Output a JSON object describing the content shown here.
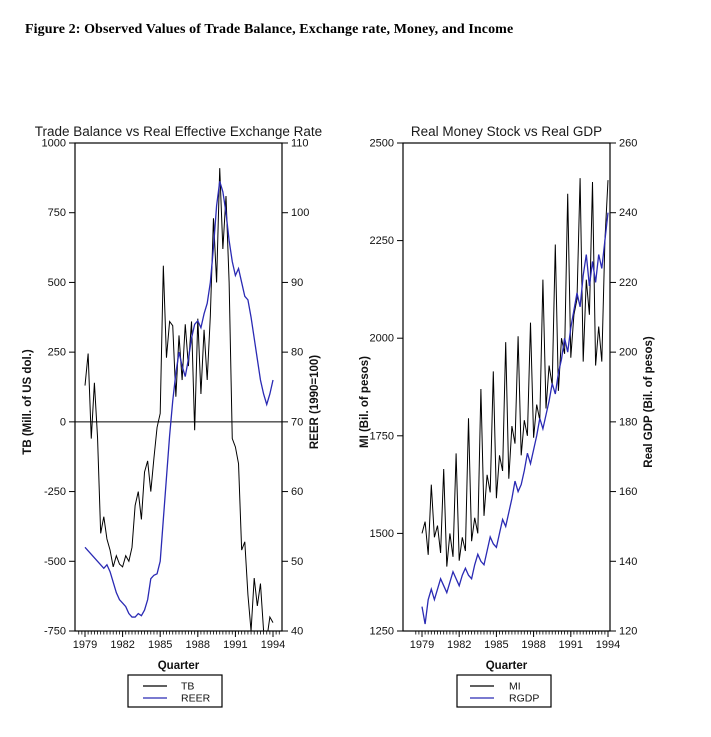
{
  "page": {
    "caption": "Figure 2: Observed Values of Trade Balance, Exchange rate, Money, and Income"
  },
  "chart_data": [
    {
      "type": "line",
      "title": "Trade Balance vs Real Effective Exchange Rate",
      "xlabel": "Quarter",
      "x_start": 1979.0,
      "x_step_years": 0.25,
      "x_tick_years": [
        1979,
        1982,
        1985,
        1988,
        1991,
        1994
      ],
      "y_left": {
        "label": "TB (Mill. of US dol.)",
        "min": -750,
        "max": 1000,
        "ticks": [
          -750,
          -500,
          -250,
          0,
          250,
          500,
          750,
          1000
        ]
      },
      "y_right": {
        "label": "REER (1990=100)",
        "min": 40,
        "max": 110,
        "ticks": [
          40,
          50,
          60,
          70,
          80,
          90,
          100,
          110
        ]
      },
      "hline_left_axis": 0,
      "grid": false,
      "legend_position": "bottom",
      "series": [
        {
          "name": "TB",
          "axis": "left",
          "color": "#000000",
          "values": [
            130,
            245,
            -60,
            140,
            -55,
            -400,
            -340,
            -420,
            -460,
            -520,
            -480,
            -510,
            -520,
            -480,
            -500,
            -450,
            -300,
            -250,
            -350,
            -180,
            -140,
            -250,
            -130,
            -20,
            30,
            560,
            230,
            360,
            345,
            90,
            310,
            150,
            350,
            200,
            360,
            -30,
            370,
            100,
            330,
            150,
            380,
            730,
            500,
            910,
            620,
            810,
            500,
            -60,
            -90,
            -150,
            -460,
            -430,
            -620,
            -750,
            -560,
            -660,
            -580,
            -750,
            -780,
            -700,
            -720
          ]
        },
        {
          "name": "REER",
          "axis": "right",
          "color": "#2a2ab4",
          "values": [
            52,
            51.5,
            51,
            50.5,
            50,
            49.5,
            49,
            49.5,
            48.5,
            47,
            45.5,
            44.5,
            44,
            43.5,
            42.5,
            42,
            42,
            42.5,
            42.2,
            43,
            44.5,
            47.5,
            48,
            48.2,
            50,
            56,
            62,
            68,
            73,
            77,
            80,
            78,
            76.5,
            79,
            82,
            84,
            84.5,
            83.5,
            85.5,
            87,
            90,
            95,
            101,
            104.5,
            103,
            100,
            96,
            93,
            91,
            92,
            90,
            88,
            87.5,
            85,
            82,
            79,
            76,
            74,
            72.5,
            74,
            76
          ]
        }
      ]
    },
    {
      "type": "line",
      "title": "Real Money Stock vs Real GDP",
      "xlabel": "Quarter",
      "x_start": 1979.0,
      "x_step_years": 0.25,
      "x_tick_years": [
        1979,
        1982,
        1985,
        1988,
        1991,
        1994
      ],
      "y_left": {
        "label": "MI (Bil. of pesos)",
        "min": 1250,
        "max": 2500,
        "ticks": [
          1250,
          1500,
          1750,
          2000,
          2250,
          2500
        ]
      },
      "y_right": {
        "label": "Real GDP (Bil. of pesos)",
        "min": 120,
        "max": 260,
        "ticks": [
          120,
          140,
          160,
          180,
          200,
          220,
          240,
          260
        ]
      },
      "hline_left_axis": null,
      "grid": false,
      "legend_position": "bottom",
      "series": [
        {
          "name": "MI",
          "axis": "left",
          "color": "#000000",
          "values": [
            1500,
            1530,
            1445,
            1625,
            1490,
            1520,
            1450,
            1665,
            1415,
            1500,
            1440,
            1705,
            1430,
            1490,
            1455,
            1795,
            1480,
            1540,
            1500,
            1870,
            1545,
            1650,
            1605,
            1915,
            1590,
            1700,
            1660,
            1990,
            1640,
            1775,
            1730,
            2005,
            1700,
            1790,
            1750,
            2040,
            1745,
            1830,
            1790,
            2150,
            1820,
            1930,
            1880,
            2240,
            1865,
            2000,
            1960,
            2370,
            1950,
            2060,
            2100,
            2410,
            1940,
            2150,
            2060,
            2400,
            1930,
            2030,
            1940,
            2250,
            2405
          ]
        },
        {
          "name": "RGDP",
          "axis": "right",
          "color": "#2a2ab4",
          "values": [
            127,
            122,
            129,
            132,
            129,
            132,
            135,
            133,
            131,
            134,
            137,
            135,
            133,
            136,
            138,
            136,
            135,
            139,
            142,
            140,
            139,
            143,
            147,
            145,
            144,
            148,
            152,
            150,
            154,
            158,
            163,
            160,
            162,
            166,
            171,
            168,
            172,
            176,
            181,
            178,
            182,
            186,
            191,
            188,
            194,
            198,
            204,
            200,
            207,
            212,
            217,
            213,
            222,
            228,
            219,
            226,
            220,
            228,
            224,
            232,
            240
          ]
        }
      ]
    }
  ]
}
